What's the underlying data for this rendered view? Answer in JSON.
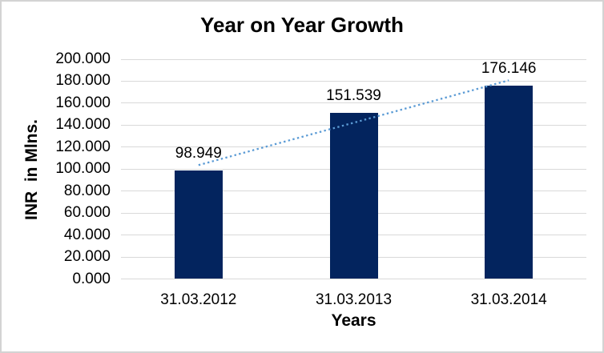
{
  "chart_data": {
    "type": "bar",
    "title": "Year on Year Growth",
    "xlabel": "Years",
    "ylabel": "INR  in Mlns.",
    "categories": [
      "31.03.2012",
      "31.03.2013",
      "31.03.2014"
    ],
    "values": [
      98.949,
      151.539,
      176.146
    ],
    "data_labels": [
      "98.949",
      "151.539",
      "176.146"
    ],
    "yticks": [
      "0.000",
      "20.000",
      "40.000",
      "60.000",
      "80.000",
      "100.000",
      "120.000",
      "140.000",
      "160.000",
      "180.000",
      "200.000"
    ],
    "ylim": [
      0,
      200
    ],
    "grid": true,
    "legend": false,
    "bar_color": "#03245E",
    "gridline_color": "#D9D9D9",
    "axis_line_color": "#D9D9D9",
    "text_color": "#000000",
    "trendline": {
      "type": "linear",
      "style": "dotted",
      "color": "#5B9BD5"
    }
  }
}
